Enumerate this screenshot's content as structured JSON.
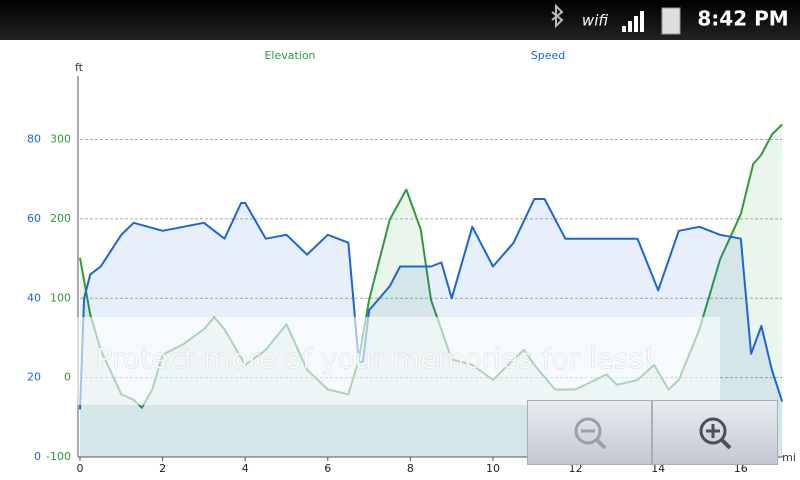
{
  "status_bar": {
    "wifi": "wifi",
    "time": "8:42 PM"
  },
  "watermark": "Protect more of your memories for less!",
  "chart_data": {
    "type": "line",
    "y_label": "ft",
    "x_label": "mi",
    "xlim": [
      0,
      17
    ],
    "xticks": [
      0,
      2,
      4,
      6,
      8,
      10,
      12,
      14,
      16
    ],
    "ylim": [
      -100,
      380
    ],
    "yticks": [
      -100,
      0,
      100,
      200,
      300
    ],
    "y2lim": [
      0,
      96
    ],
    "y2ticks": [
      0,
      20,
      40,
      60,
      80
    ],
    "grid": true,
    "series": [
      {
        "name": "Elevation",
        "color": "#2e9a3a",
        "x": [
          0,
          0.25,
          0.5,
          1,
          1.3,
          1.5,
          1.75,
          2,
          2.5,
          3,
          3.25,
          3.5,
          4,
          4.5,
          5,
          5.5,
          6,
          6.5,
          6.75,
          7,
          7.5,
          7.9,
          8.25,
          8.5,
          9,
          9.5,
          10,
          10.5,
          10.75,
          11,
          11.5,
          12,
          12.75,
          13,
          13.5,
          13.9,
          14.25,
          14.5,
          15,
          15.5,
          16,
          16.3,
          16.5,
          16.75,
          17
        ],
        "values": [
          151,
          79,
          35,
          -21,
          -28,
          -38,
          -15,
          29,
          42,
          61,
          76,
          61,
          16,
          35,
          67,
          10,
          -15,
          -21,
          23,
          98,
          199,
          237,
          187,
          98,
          23,
          16,
          -3,
          23,
          35,
          16,
          -15,
          -15,
          4,
          -9,
          -3,
          16,
          -15,
          -3,
          61,
          149,
          206,
          269,
          281,
          306,
          319
        ]
      },
      {
        "name": "Speed",
        "color": "#1a66d6",
        "axis": "y2",
        "x": [
          0,
          0.1,
          0.25,
          0.5,
          1,
          1.3,
          2,
          2.5,
          3,
          3.5,
          3.9,
          4,
          4.5,
          5,
          5.5,
          6,
          6.5,
          6.75,
          6.85,
          7,
          7.5,
          7.75,
          8,
          8.5,
          8.75,
          9,
          9.5,
          10,
          10.5,
          11,
          11.25,
          11.75,
          12,
          13,
          13.5,
          14,
          14.5,
          15,
          15.5,
          16,
          16.25,
          16.5,
          16.75,
          17
        ],
        "values": [
          12,
          40,
          46,
          48,
          56,
          59,
          57,
          58,
          59,
          55,
          64,
          64,
          55,
          56,
          51,
          56,
          54,
          24,
          24,
          37,
          43,
          48,
          48,
          48,
          49,
          40,
          58,
          48,
          54,
          65,
          65,
          55,
          55,
          55,
          55,
          42,
          57,
          58,
          56,
          55,
          26,
          33,
          22,
          14
        ]
      }
    ]
  }
}
